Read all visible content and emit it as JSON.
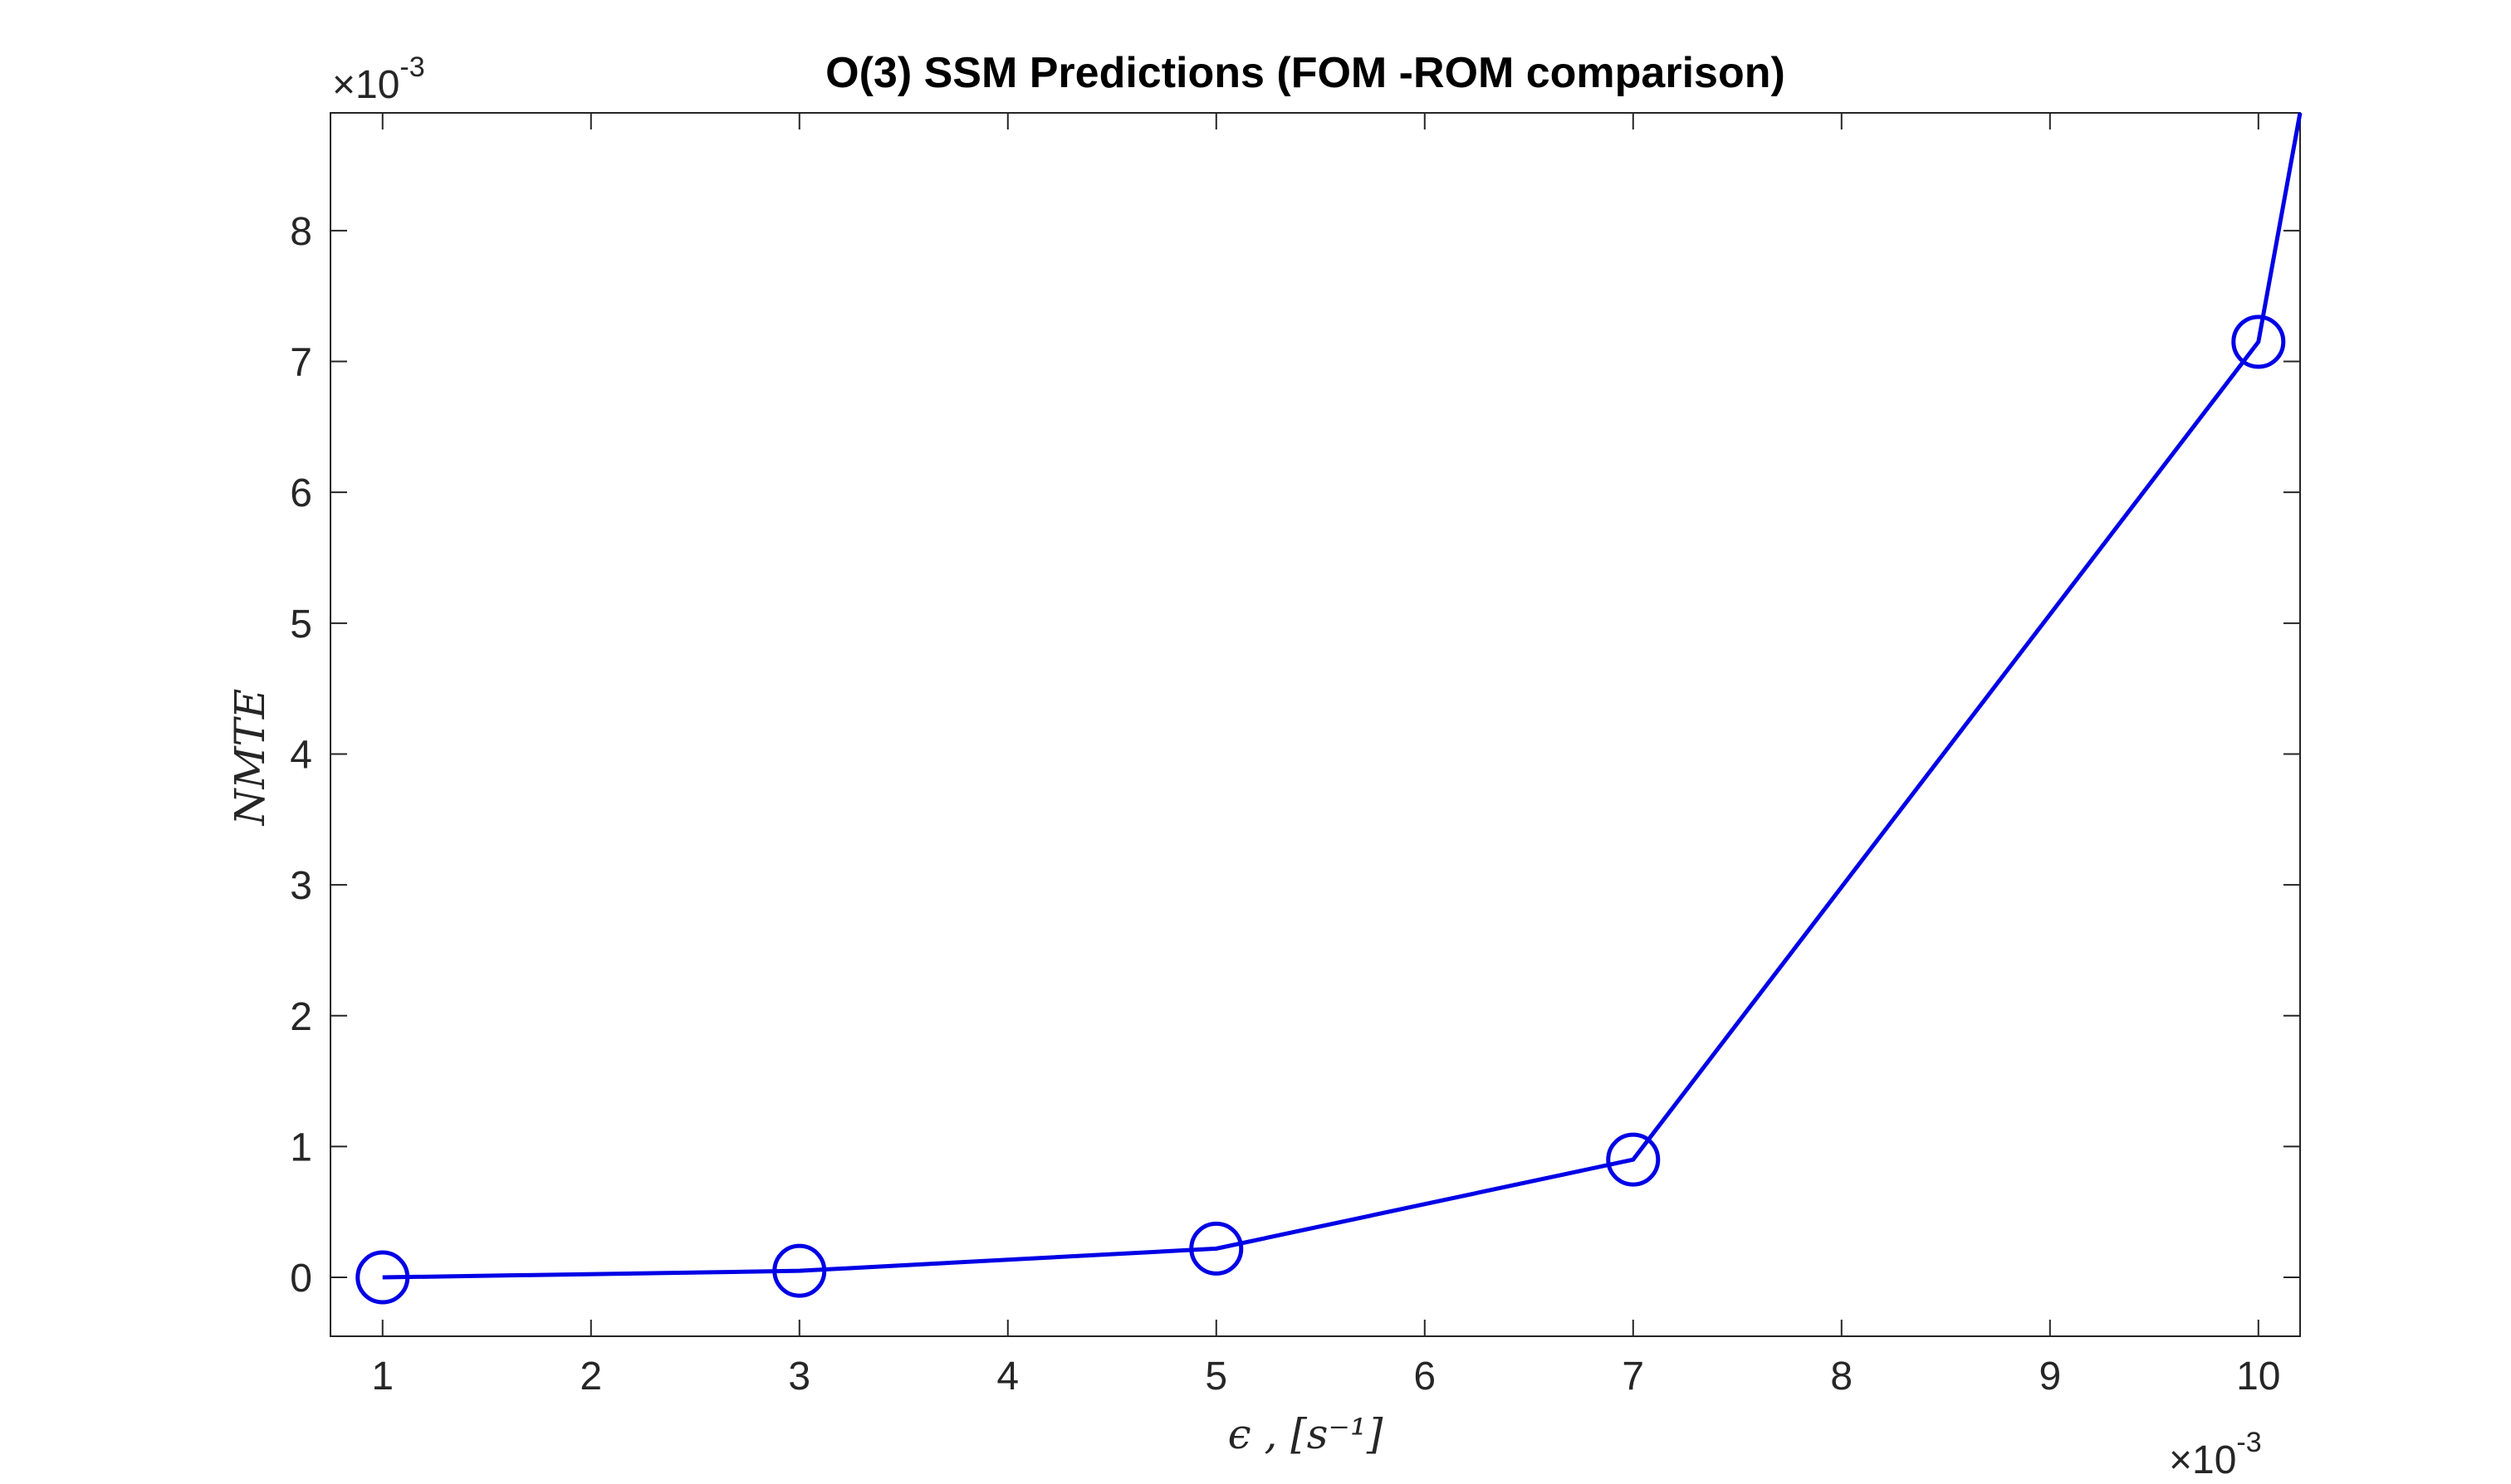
{
  "chart_data": {
    "type": "line",
    "title": "O(3) SSM Predictions (FOM -ROM comparison)",
    "xlabel": "ϵ , [s⁻¹]",
    "ylabel": "NMTE",
    "x_multiplier": "×10",
    "x_multiplier_exp": "-3",
    "y_multiplier": "×10",
    "y_multiplier_exp": "-3",
    "xlim": [
      0.75,
      10.2
    ],
    "ylim": [
      -0.45,
      8.9
    ],
    "xticks": [
      1,
      2,
      3,
      4,
      5,
      6,
      7,
      8,
      9,
      10
    ],
    "xtick_labels": [
      "1",
      "2",
      "3",
      "4",
      "5",
      "6",
      "7",
      "8",
      "9",
      "10"
    ],
    "yticks": [
      0,
      1,
      2,
      3,
      4,
      5,
      6,
      7,
      8
    ],
    "ytick_labels": [
      "0",
      "1",
      "2",
      "3",
      "4",
      "5",
      "6",
      "7",
      "8"
    ],
    "grid": false,
    "series": [
      {
        "color": "#0000e6",
        "marker": "circle",
        "x": [
          1,
          3,
          5,
          7,
          10
        ],
        "y": [
          0.0,
          0.05,
          0.22,
          0.9,
          7.15
        ],
        "extension_to": [
          10.2,
          8.9
        ]
      }
    ]
  }
}
